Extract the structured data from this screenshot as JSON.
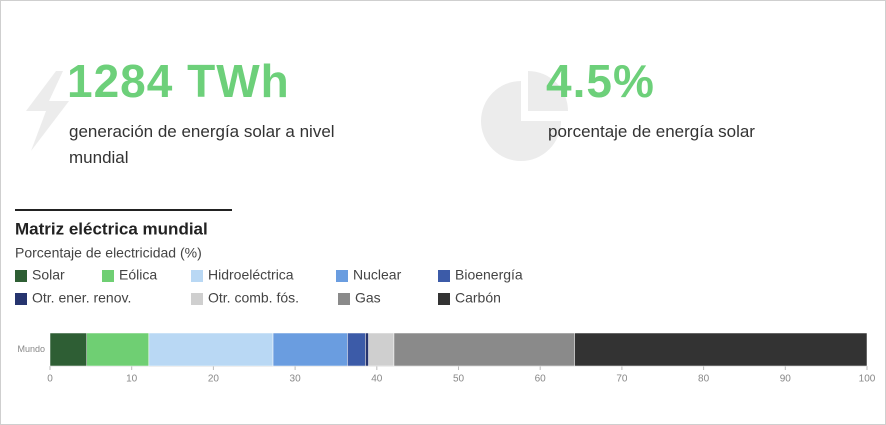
{
  "stats": [
    {
      "value": "1284 TWh",
      "label": "generación de energía solar a nivel mundial"
    },
    {
      "value": "4.5%",
      "label": "porcentaje de energía solar"
    }
  ],
  "chart_data": {
    "type": "stacked-bar-horizontal",
    "title": "Matriz eléctrica mundial",
    "subtitle": "Porcentaje de electricidad (%)",
    "categories": [
      "Mundo"
    ],
    "series": [
      {
        "name": "Solar",
        "color": "#2e5e34",
        "values": [
          4.5
        ]
      },
      {
        "name": "Eólica",
        "color": "#6fcf73",
        "values": [
          7.6
        ]
      },
      {
        "name": "Hidroeléctrica",
        "color": "#b9d8f4",
        "values": [
          15.2
        ]
      },
      {
        "name": "Nuclear",
        "color": "#6a9de0",
        "values": [
          9.1
        ]
      },
      {
        "name": "Bioenergía",
        "color": "#3c5ba8",
        "values": [
          2.2
        ]
      },
      {
        "name": "Otr. ener. renov.",
        "color": "#26346e",
        "values": [
          0.4
        ]
      },
      {
        "name": "Otr. comb. fós.",
        "color": "#cfcfcf",
        "values": [
          3.1
        ]
      },
      {
        "name": "Gas",
        "color": "#8a8a8a",
        "values": [
          22.1
        ]
      },
      {
        "name": "Carbón",
        "color": "#333333",
        "values": [
          35.8
        ]
      }
    ],
    "xlim": [
      0,
      100
    ],
    "xticks": [
      0,
      10,
      20,
      30,
      40,
      50,
      60,
      70,
      80,
      90,
      100
    ]
  }
}
